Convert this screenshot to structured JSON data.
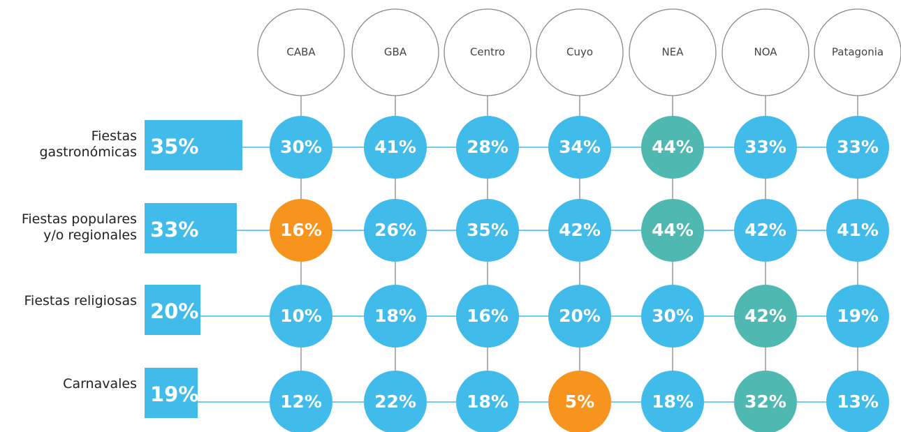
{
  "chart_data": {
    "type": "dot-matrix",
    "columns": [
      "CABA",
      "GBA",
      "Centro",
      "Cuyo",
      "NEA",
      "NOA",
      "Patagonia"
    ],
    "bar_color": "#41bbea",
    "palette": {
      "base": "#41bbea",
      "high": "#4fb8b1",
      "low": "#f7941d"
    },
    "rows": [
      {
        "label": "Fiestas gastronómicas",
        "total": 35,
        "total_label": "35%",
        "values": [
          30,
          41,
          28,
          34,
          44,
          33,
          33
        ],
        "value_labels": [
          "30%",
          "41%",
          "28%",
          "34%",
          "44%",
          "33%",
          "33%"
        ],
        "highlight": [
          "base",
          "base",
          "base",
          "base",
          "high",
          "base",
          "base"
        ]
      },
      {
        "label": "Fiestas populares y/o regionales",
        "total": 33,
        "total_label": "33%",
        "values": [
          16,
          26,
          35,
          42,
          44,
          42,
          41
        ],
        "value_labels": [
          "16%",
          "26%",
          "35%",
          "42%",
          "44%",
          "42%",
          "41%"
        ],
        "highlight": [
          "low",
          "base",
          "base",
          "base",
          "high",
          "base",
          "base"
        ]
      },
      {
        "label": "Fiestas religiosas",
        "total": 20,
        "total_label": "20%",
        "values": [
          10,
          18,
          16,
          20,
          30,
          42,
          19
        ],
        "value_labels": [
          "10%",
          "18%",
          "16%",
          "20%",
          "30%",
          "42%",
          "19%"
        ],
        "highlight": [
          "base",
          "base",
          "base",
          "base",
          "base",
          "high",
          "base"
        ]
      },
      {
        "label": "Carnavales",
        "total": 19,
        "total_label": "19%",
        "values": [
          12,
          22,
          18,
          5,
          18,
          32,
          13
        ],
        "value_labels": [
          "12%",
          "22%",
          "18%",
          "5%",
          "18%",
          "32%",
          "13%"
        ],
        "highlight": [
          "base",
          "base",
          "base",
          "low",
          "base",
          "high",
          "base"
        ]
      }
    ]
  }
}
